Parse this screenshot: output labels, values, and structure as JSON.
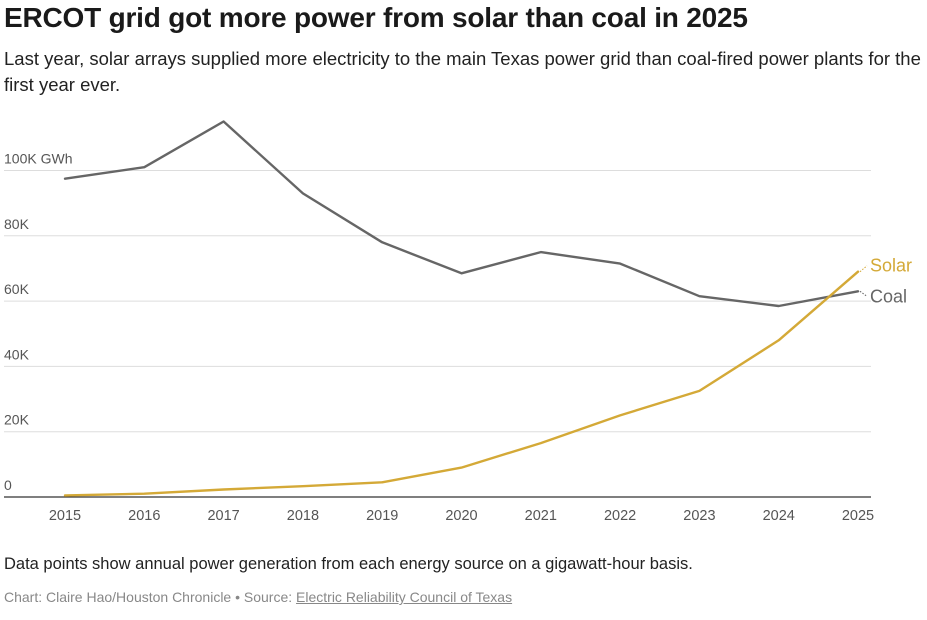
{
  "chart_data": {
    "type": "line",
    "title": "ERCOT grid got more power from solar than coal in 2025",
    "subtitle": "Last year, solar arrays supplied more electricity to the main Texas power grid than coal-fired power plants for the first year ever.",
    "x": [
      2015,
      2016,
      2017,
      2018,
      2019,
      2020,
      2021,
      2022,
      2023,
      2024,
      2025
    ],
    "x_tick_labels": [
      "2015",
      "2016",
      "2017",
      "2018",
      "2019",
      "2020",
      "2021",
      "2022",
      "2023",
      "2024",
      "2025"
    ],
    "ylim": [
      0,
      115000
    ],
    "y_ticks": [
      0,
      20000,
      40000,
      60000,
      80000,
      100000
    ],
    "y_tick_labels": [
      "0",
      "20K",
      "40K",
      "60K",
      "80K",
      "100K GWh"
    ],
    "grid": true,
    "series": [
      {
        "name": "Coal",
        "color": "#666666",
        "values": [
          97500,
          101000,
          115000,
          93000,
          78000,
          68500,
          75000,
          71500,
          61500,
          58500,
          63000
        ]
      },
      {
        "name": "Solar",
        "color": "#d4a937",
        "values": [
          500,
          1000,
          2300,
          3300,
          4500,
          9000,
          16500,
          25000,
          32500,
          48000,
          69000
        ]
      }
    ]
  },
  "note": "Data points show annual power generation from each energy source on a gigawatt-hour basis.",
  "credit": {
    "prefix": "Chart: Claire Hao/Houston Chronicle • Source: ",
    "source_link": "Electric Reliability Council of Texas"
  }
}
